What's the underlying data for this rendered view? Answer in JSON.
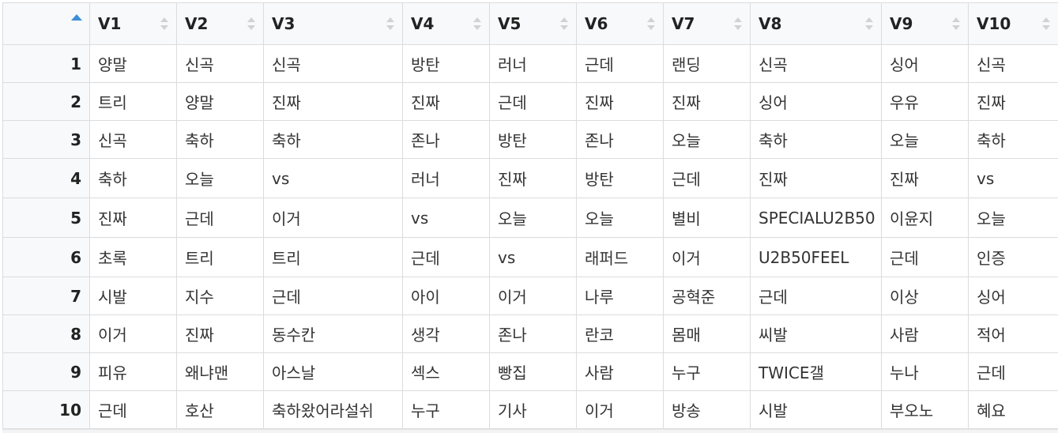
{
  "table": {
    "columns": [
      "V1",
      "V2",
      "V3",
      "V4",
      "V5",
      "V6",
      "V7",
      "V8",
      "V9",
      "V10"
    ],
    "sorted_column": "row index",
    "sort_direction": "ascending",
    "rows": [
      {
        "index": "1",
        "cells": [
          "양말",
          "신곡",
          "신곡",
          "방탄",
          "러너",
          "근데",
          "랜딩",
          "신곡",
          "싱어",
          "신곡"
        ]
      },
      {
        "index": "2",
        "cells": [
          "트리",
          "양말",
          "진짜",
          "진짜",
          "근데",
          "진짜",
          "진짜",
          "싱어",
          "우유",
          "진짜"
        ]
      },
      {
        "index": "3",
        "cells": [
          "신곡",
          "축하",
          "축하",
          "존나",
          "방탄",
          "존나",
          "오늘",
          "축하",
          "오늘",
          "축하"
        ]
      },
      {
        "index": "4",
        "cells": [
          "축하",
          "오늘",
          "vs",
          "러너",
          "진짜",
          "방탄",
          "근데",
          "진짜",
          "진짜",
          "vs"
        ]
      },
      {
        "index": "5",
        "cells": [
          "진짜",
          "근데",
          "이거",
          "vs",
          "오늘",
          "오늘",
          "별비",
          "SPECIALU2B50",
          "이윤지",
          "오늘"
        ]
      },
      {
        "index": "6",
        "cells": [
          "초록",
          "트리",
          "트리",
          "근데",
          "vs",
          "래퍼드",
          "이거",
          "U2B50FEEL",
          "근데",
          "인증"
        ]
      },
      {
        "index": "7",
        "cells": [
          "시발",
          "지수",
          "근데",
          "아이",
          "이거",
          "나루",
          "공혁준",
          "근데",
          "이상",
          "싱어"
        ]
      },
      {
        "index": "8",
        "cells": [
          "이거",
          "진짜",
          "동수칸",
          "생각",
          "존나",
          "란코",
          "몸매",
          "씨발",
          "사람",
          "적어"
        ]
      },
      {
        "index": "9",
        "cells": [
          "피유",
          "왜냐맨",
          "아스날",
          "섹스",
          "빵집",
          "사람",
          "누구",
          "TWICE갤",
          "누나",
          "근데"
        ]
      },
      {
        "index": "10",
        "cells": [
          "근데",
          "호산",
          "축하왔어라설쉬",
          "누구",
          "기사",
          "이거",
          "방송",
          "시발",
          "부오노",
          "혜요"
        ]
      }
    ]
  },
  "colors": {
    "accent": "#3b8fd9",
    "header_bg": "#f7f9fa",
    "border": "#dcdcdc"
  }
}
